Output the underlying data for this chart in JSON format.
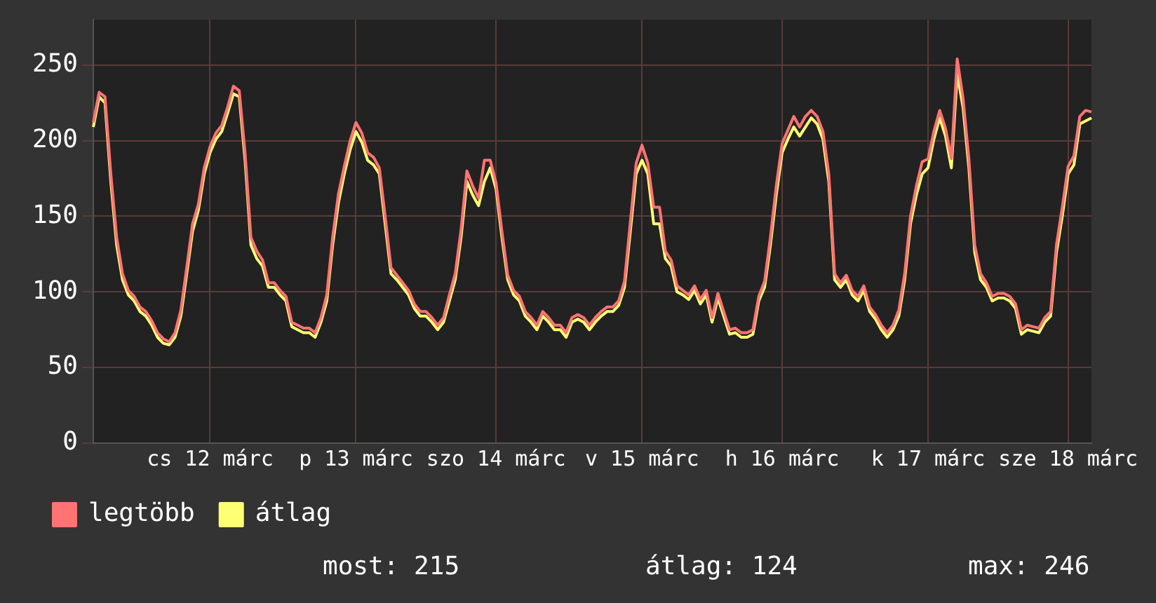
{
  "chart_data": {
    "type": "line",
    "categories": [
      null,
      null,
      null,
      null,
      null,
      null,
      null,
      null,
      null,
      null,
      null,
      null,
      null,
      null,
      null,
      null,
      null,
      null,
      null,
      null,
      "cs 12 márc",
      null,
      null,
      null,
      null,
      null,
      null,
      null,
      null,
      null,
      null,
      null,
      null,
      null,
      null,
      null,
      null,
      null,
      null,
      null,
      null,
      null,
      null,
      null,
      null,
      "p 13 márc",
      null,
      null,
      null,
      null,
      null,
      null,
      null,
      null,
      null,
      null,
      null,
      null,
      null,
      null,
      null,
      null,
      null,
      null,
      null,
      null,
      null,
      null,
      null,
      "szo 14 márc",
      null,
      null,
      null,
      null,
      null,
      null,
      null,
      null,
      null,
      null,
      null,
      null,
      null,
      null,
      null,
      null,
      null,
      null,
      null,
      null,
      null,
      null,
      null,
      null,
      "v 15 márc",
      null,
      null,
      null,
      null,
      null,
      null,
      null,
      null,
      null,
      null,
      null,
      null,
      null,
      null,
      null,
      null,
      null,
      null,
      null,
      null,
      null,
      null,
      null,
      "h 16 márc",
      null,
      null,
      null,
      null,
      null,
      null,
      null,
      null,
      null,
      null,
      null,
      null,
      null,
      null,
      null,
      null,
      null,
      null,
      null,
      null,
      null,
      null,
      null,
      null,
      "k 17 márc",
      null,
      null,
      null,
      null,
      null,
      null,
      null,
      null,
      null,
      null,
      null,
      null,
      null,
      null,
      null,
      null,
      null,
      null,
      null,
      null,
      null,
      null,
      null,
      "sze 18 márc",
      null,
      null,
      null,
      null
    ],
    "series": [
      {
        "name": "legtöbb",
        "color": "#ff7373",
        "values": [
          212,
          232,
          229,
          178,
          136,
          112,
          101,
          97,
          90,
          87,
          81,
          73,
          69,
          67,
          73,
          88,
          116,
          145,
          158,
          182,
          196,
          205,
          210,
          222,
          236,
          233,
          192,
          136,
          127,
          121,
          106,
          106,
          101,
          97,
          80,
          78,
          76,
          76,
          73,
          83,
          98,
          136,
          165,
          183,
          200,
          212,
          205,
          192,
          189,
          182,
          150,
          116,
          111,
          106,
          101,
          92,
          87,
          87,
          83,
          78,
          83,
          98,
          112,
          141,
          180,
          170,
          162,
          187,
          187,
          172,
          140,
          111,
          101,
          97,
          87,
          83,
          78,
          87,
          83,
          78,
          78,
          73,
          83,
          85,
          83,
          78,
          83,
          87,
          90,
          90,
          94,
          107,
          146,
          185,
          197,
          185,
          156,
          156,
          127,
          121,
          104,
          101,
          98,
          104,
          95,
          101,
          83,
          99,
          87,
          75,
          76,
          73,
          73,
          75,
          97,
          107,
          136,
          170,
          198,
          207,
          216,
          209,
          216,
          220,
          216,
          206,
          178,
          112,
          106,
          111,
          101,
          97,
          104,
          90,
          85,
          78,
          73,
          78,
          88,
          112,
          150,
          170,
          186,
          188,
          206,
          220,
          208,
          188,
          254,
          228,
          188,
          131,
          112,
          106,
          97,
          99,
          99,
          97,
          92,
          75,
          78,
          77,
          76,
          83,
          87,
          131,
          156,
          183,
          190,
          216,
          220,
          219
        ]
      },
      {
        "name": "átlag",
        "color": "#ffff73",
        "values": [
          209,
          229,
          225,
          173,
          131,
          108,
          98,
          94,
          87,
          84,
          78,
          70,
          66,
          65,
          70,
          84,
          112,
          140,
          154,
          178,
          192,
          201,
          206,
          218,
          231,
          229,
          187,
          131,
          122,
          117,
          103,
          103,
          98,
          94,
          77,
          75,
          73,
          73,
          70,
          80,
          94,
          131,
          159,
          178,
          194,
          206,
          199,
          187,
          184,
          178,
          145,
          112,
          108,
          103,
          98,
          89,
          84,
          84,
          80,
          75,
          80,
          94,
          108,
          136,
          173,
          164,
          157,
          173,
          182,
          168,
          136,
          108,
          98,
          94,
          84,
          80,
          75,
          84,
          80,
          75,
          75,
          70,
          80,
          82,
          80,
          75,
          80,
          84,
          87,
          87,
          91,
          103,
          140,
          178,
          187,
          178,
          145,
          145,
          122,
          117,
          100,
          98,
          95,
          101,
          92,
          98,
          80,
          96,
          84,
          72,
          73,
          70,
          70,
          72,
          94,
          103,
          131,
          164,
          192,
          201,
          209,
          203,
          209,
          215,
          211,
          201,
          173,
          108,
          103,
          108,
          98,
          94,
          101,
          87,
          82,
          75,
          70,
          75,
          84,
          108,
          145,
          164,
          178,
          182,
          201,
          215,
          203,
          182,
          244,
          222,
          182,
          126,
          108,
          103,
          94,
          96,
          96,
          94,
          89,
          72,
          75,
          74,
          73,
          80,
          84,
          126,
          150,
          178,
          184,
          211,
          213,
          215
        ]
      }
    ],
    "ylim": [
      0,
      280
    ],
    "yticks": [
      0,
      50,
      100,
      150,
      200,
      250
    ],
    "grid": true,
    "legend": "bottom left",
    "marker": "none",
    "line_style": "solid",
    "annotations": [
      "most: 215",
      "átlag: 124",
      "max: 246"
    ]
  }
}
